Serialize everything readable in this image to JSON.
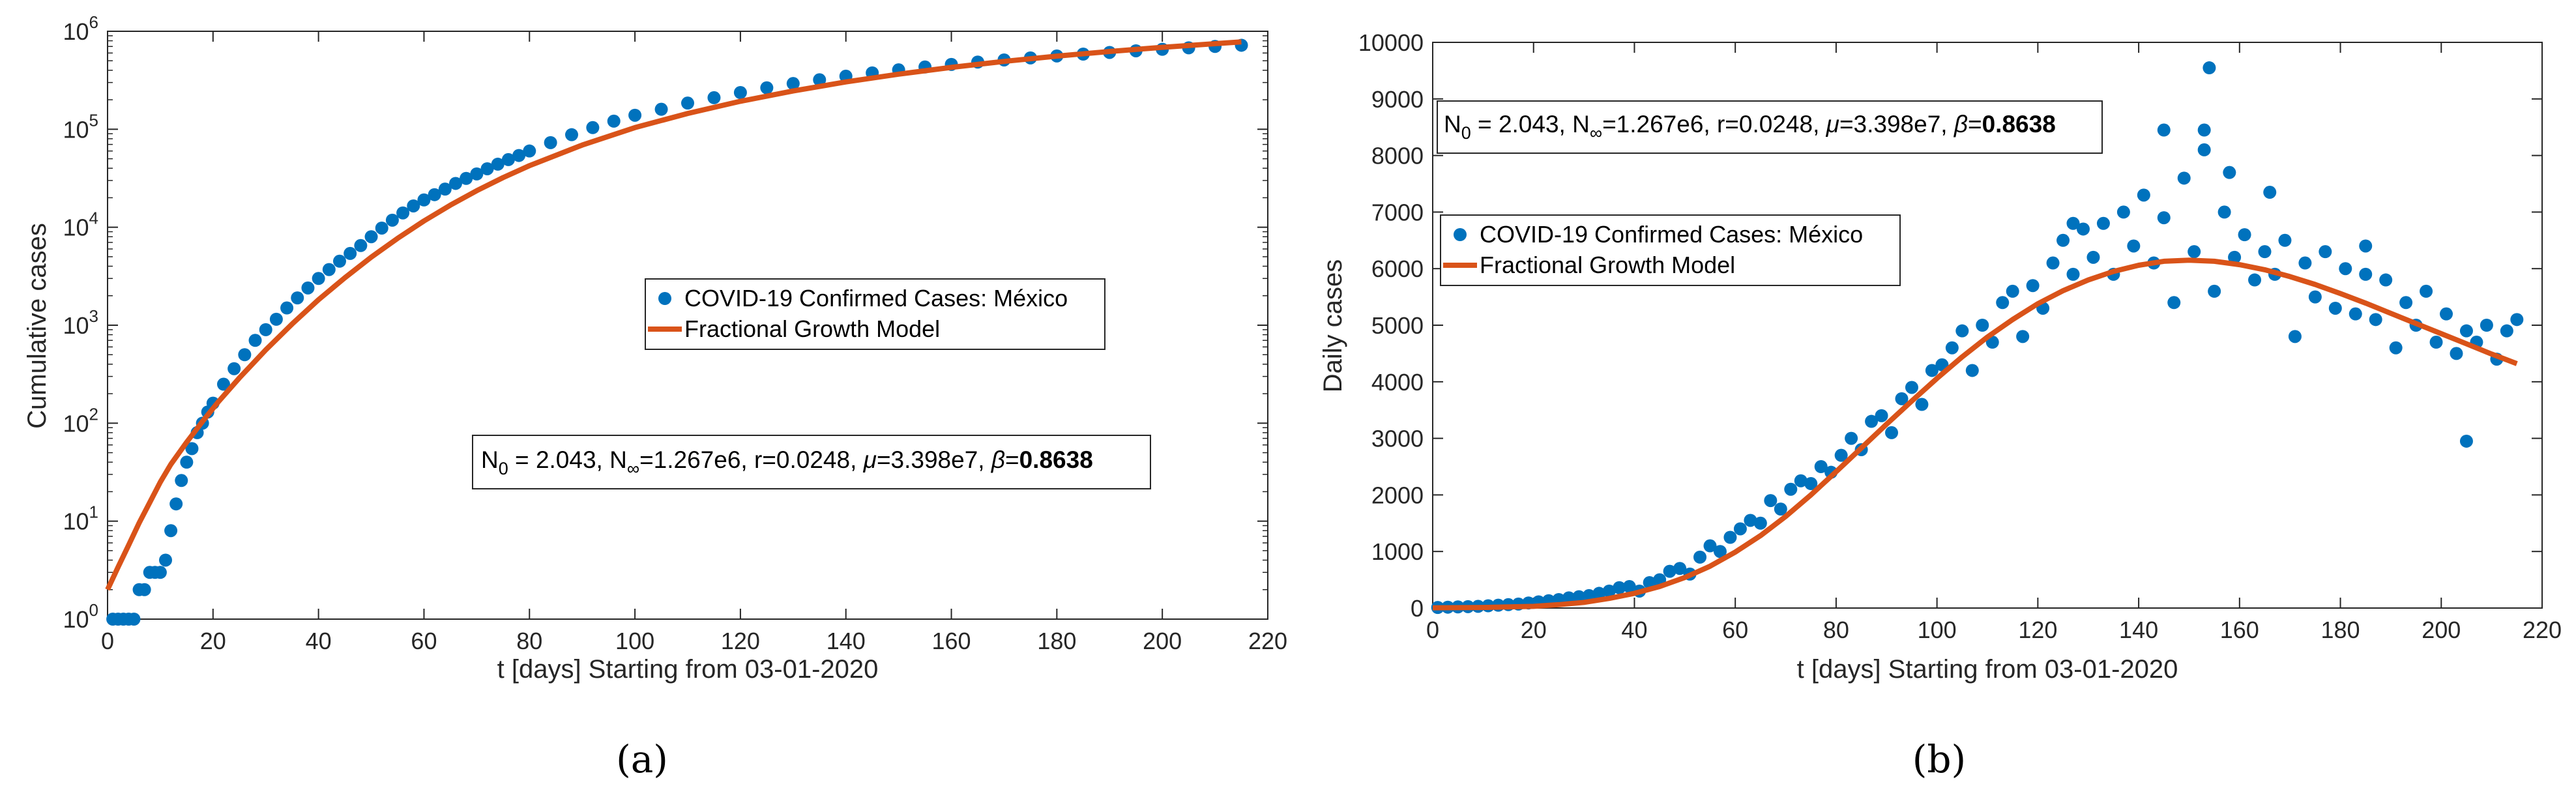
{
  "colors": {
    "data": "#0072BD",
    "model": "#D95319",
    "axis": "#262626",
    "grid": "#ffffff"
  },
  "chart_data": [
    {
      "id": "a",
      "type": "scatter",
      "yscale": "log",
      "xlabel": "t [days] Starting from 03-01-2020",
      "ylabel": "Cumulative cases",
      "xlim": [
        0,
        220
      ],
      "ylim": [
        1,
        1000000
      ],
      "xticks": [
        "0",
        "20",
        "40",
        "60",
        "80",
        "100",
        "120",
        "140",
        "160",
        "180",
        "200",
        "220"
      ],
      "yticks": [
        {
          "base": "10",
          "exp": "0"
        },
        {
          "base": "10",
          "exp": "1"
        },
        {
          "base": "10",
          "exp": "2"
        },
        {
          "base": "10",
          "exp": "3"
        },
        {
          "base": "10",
          "exp": "4"
        },
        {
          "base": "10",
          "exp": "5"
        },
        {
          "base": "10",
          "exp": "6"
        }
      ],
      "legend": {
        "placement": "center-right",
        "data_label": "COVID-19 Confirmed Cases: México",
        "model_label": "Fractional Growth Model"
      },
      "params_placement": "lower-right",
      "series": [
        {
          "name": "COVID-19 Confirmed Cases: México",
          "kind": "markers",
          "x": [
            1,
            2,
            3,
            4,
            5,
            6,
            7,
            8,
            9,
            10,
            11,
            12,
            13,
            14,
            15,
            16,
            17,
            18,
            19,
            20,
            22,
            24,
            26,
            28,
            30,
            32,
            34,
            36,
            38,
            40,
            42,
            44,
            46,
            48,
            50,
            52,
            54,
            56,
            58,
            60,
            62,
            64,
            66,
            68,
            70,
            72,
            74,
            76,
            78,
            80,
            84,
            88,
            92,
            96,
            100,
            105,
            110,
            115,
            120,
            125,
            130,
            135,
            140,
            145,
            150,
            155,
            160,
            165,
            170,
            175,
            180,
            185,
            190,
            195,
            200,
            205,
            210,
            215
          ],
          "y": [
            1,
            1,
            1,
            1,
            1,
            2,
            2,
            3,
            3,
            3,
            4,
            8,
            15,
            26,
            40,
            55,
            80,
            100,
            130,
            160,
            250,
            360,
            500,
            700,
            900,
            1150,
            1500,
            1900,
            2400,
            3000,
            3700,
            4500,
            5400,
            6500,
            8000,
            9800,
            11800,
            14000,
            16500,
            19000,
            21500,
            24500,
            28000,
            31500,
            35000,
            39500,
            44000,
            49000,
            54000,
            60000,
            73000,
            88000,
            104000,
            121000,
            139000,
            160000,
            185000,
            210000,
            237000,
            265000,
            293000,
            320000,
            348000,
            376000,
            404000,
            432000,
            459000,
            485000,
            510000,
            535000,
            560000,
            585000,
            608000,
            632000,
            655000,
            678000,
            700000,
            720000
          ]
        },
        {
          "name": "Fractional Growth Model",
          "kind": "line",
          "x": [
            0,
            2,
            4,
            6,
            8,
            10,
            12,
            15,
            18,
            21,
            25,
            30,
            35,
            40,
            45,
            50,
            55,
            60,
            65,
            70,
            75,
            80,
            90,
            100,
            110,
            120,
            130,
            140,
            150,
            160,
            170,
            180,
            190,
            200,
            210,
            215
          ],
          "y": [
            2,
            3.4,
            5.7,
            9.6,
            15.5,
            25,
            38,
            64,
            104,
            165,
            290,
            560,
            1030,
            1820,
            3050,
            4950,
            7700,
            11600,
            16800,
            23600,
            32100,
            42500,
            69000,
            104000,
            145000,
            193000,
            246000,
            304000,
            365000,
            428000,
            493000,
            558000,
            622000,
            686000,
            748000,
            779000
          ]
        }
      ],
      "params": {
        "N0": "2.043",
        "Ninf": "1.267e6",
        "r": "0.0248",
        "mu": "3.398e7",
        "beta": "0.8638"
      }
    },
    {
      "id": "b",
      "type": "scatter",
      "yscale": "linear",
      "xlabel": "t [days] Starting from 03-01-2020",
      "ylabel": "Daily cases",
      "xlim": [
        0,
        220
      ],
      "ylim": [
        0,
        10000
      ],
      "xticks": [
        "0",
        "20",
        "40",
        "60",
        "80",
        "100",
        "120",
        "140",
        "160",
        "180",
        "200",
        "220"
      ],
      "yticks": [
        "0",
        "1000",
        "2000",
        "3000",
        "4000",
        "5000",
        "6000",
        "7000",
        "8000",
        "9000",
        "10000"
      ],
      "legend": {
        "placement": "upper-left",
        "data_label": "COVID-19 Confirmed Cases: México",
        "model_label": "Fractional Growth Model"
      },
      "params_placement": "top-left",
      "series": [
        {
          "name": "COVID-19 Confirmed Cases: México",
          "kind": "markers",
          "x": [
            1,
            3,
            5,
            7,
            9,
            11,
            13,
            15,
            17,
            19,
            21,
            23,
            25,
            27,
            29,
            31,
            33,
            35,
            37,
            39,
            41,
            43,
            45,
            47,
            49,
            51,
            53,
            55,
            57,
            59,
            61,
            63,
            65,
            67,
            69,
            71,
            73,
            75,
            77,
            79,
            81,
            83,
            85,
            87,
            89,
            91,
            93,
            95,
            97,
            99,
            101,
            103,
            105,
            107,
            109,
            111,
            113,
            115,
            117,
            119,
            121,
            123,
            125,
            127,
            129,
            131,
            133,
            135,
            137,
            139,
            141,
            143,
            145,
            147,
            149,
            151,
            153,
            155,
            157,
            159,
            161,
            163,
            165,
            167,
            169,
            171,
            173,
            175,
            177,
            179,
            181,
            183,
            185,
            187,
            189,
            191,
            193,
            195,
            197,
            199,
            201,
            203,
            205,
            207,
            209,
            211,
            213,
            215
          ],
          "y": [
            10,
            15,
            20,
            25,
            30,
            40,
            50,
            60,
            70,
            90,
            110,
            130,
            150,
            180,
            200,
            220,
            260,
            300,
            360,
            380,
            300,
            450,
            500,
            650,
            700,
            600,
            900,
            1100,
            1000,
            1250,
            1400,
            1550,
            1500,
            1900,
            1750,
            2100,
            2250,
            2200,
            2500,
            2400,
            2700,
            3000,
            2800,
            3300,
            3400,
            3100,
            3700,
            3900,
            3600,
            4200,
            4300,
            4600,
            4900,
            4200,
            5000,
            4700,
            5400,
            5600,
            4800,
            5700,
            5300,
            6100,
            6500,
            5900,
            6700,
            6200,
            6800,
            5900,
            7000,
            6400,
            7300,
            6100,
            6900,
            5400,
            7600,
            6300,
            8100,
            5600,
            7000,
            6200,
            6600,
            5800,
            6300,
            5900,
            6500,
            4800,
            6100,
            5500,
            6300,
            5300,
            6000,
            5200,
            5900,
            5100,
            5800,
            4600,
            5400,
            5000,
            5600,
            4700,
            5200,
            4500,
            4900,
            4700,
            5000,
            4400,
            4900,
            5100
          ]
        },
        {
          "name": "Fractional Growth Model",
          "kind": "line",
          "x": [
            0,
            10,
            20,
            25,
            30,
            35,
            40,
            45,
            50,
            55,
            60,
            65,
            70,
            75,
            80,
            85,
            90,
            95,
            100,
            105,
            110,
            115,
            120,
            125,
            130,
            135,
            140,
            145,
            150,
            155,
            160,
            165,
            170,
            175,
            180,
            185,
            190,
            195,
            200,
            205,
            210,
            215
          ],
          "y": [
            5,
            10,
            30,
            60,
            100,
            170,
            260,
            380,
            540,
            740,
            990,
            1280,
            1620,
            2000,
            2410,
            2830,
            3250,
            3660,
            4060,
            4440,
            4790,
            5100,
            5380,
            5610,
            5800,
            5950,
            6060,
            6130,
            6150,
            6130,
            6070,
            5980,
            5860,
            5720,
            5560,
            5390,
            5210,
            5030,
            4850,
            4670,
            4490,
            4320
          ]
        }
      ],
      "params": {
        "N0": "2.043",
        "Ninf": "1.267e6",
        "r": "0.0248",
        "mu": "3.398e7",
        "beta": "0.8638"
      }
    }
  ],
  "subfigures": [
    "(a)",
    "(b)"
  ],
  "highlighted_points_b": [
    {
      "x": 154,
      "y": 9550
    },
    {
      "x": 145,
      "y": 8450
    },
    {
      "x": 153,
      "y": 8450
    },
    {
      "x": 127,
      "y": 6800
    },
    {
      "x": 166,
      "y": 7350
    },
    {
      "x": 185,
      "y": 6400
    },
    {
      "x": 205,
      "y": 2950
    },
    {
      "x": 158,
      "y": 7700
    }
  ]
}
